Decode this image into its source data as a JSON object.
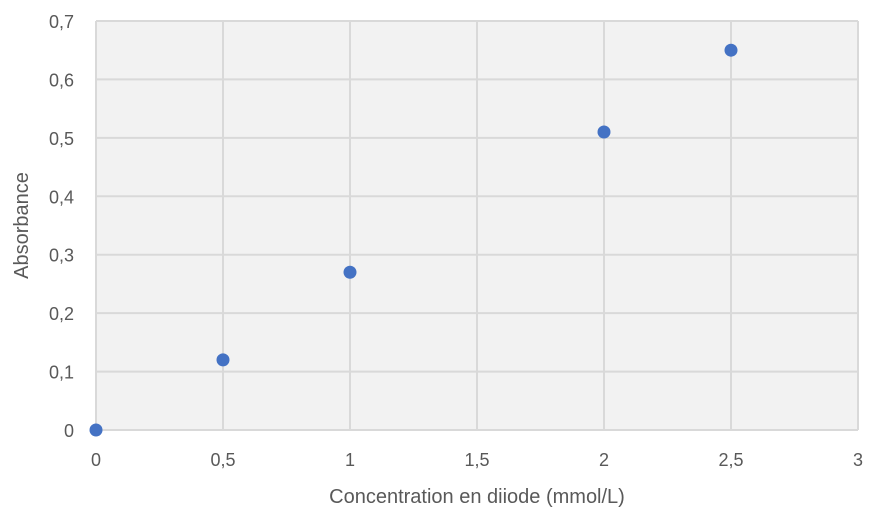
{
  "chart_data": {
    "type": "scatter",
    "title": "",
    "xlabel": "Concentration en diiode (mmol/L)",
    "ylabel": "Absorbance",
    "xlim": [
      0,
      3
    ],
    "ylim": [
      0,
      0.7
    ],
    "x_ticks": [
      0,
      0.5,
      1,
      1.5,
      2,
      2.5,
      3
    ],
    "x_tick_labels": [
      "0",
      "0,5",
      "1",
      "1,5",
      "2",
      "2,5",
      "3"
    ],
    "y_ticks": [
      0,
      0.1,
      0.2,
      0.3,
      0.4,
      0.5,
      0.6,
      0.7
    ],
    "y_tick_labels": [
      "0",
      "0,1",
      "0,2",
      "0,3",
      "0,4",
      "0,5",
      "0,6",
      "0,7"
    ],
    "grid": true,
    "legend": "none",
    "series": [
      {
        "x": [
          0,
          0.5,
          1,
          2,
          2.5
        ],
        "y": [
          0,
          0.12,
          0.27,
          0.51,
          0.65
        ],
        "color": "#4472C4"
      }
    ],
    "plot_background": "#F2F2F2",
    "grid_color": "#D9D9D9"
  }
}
